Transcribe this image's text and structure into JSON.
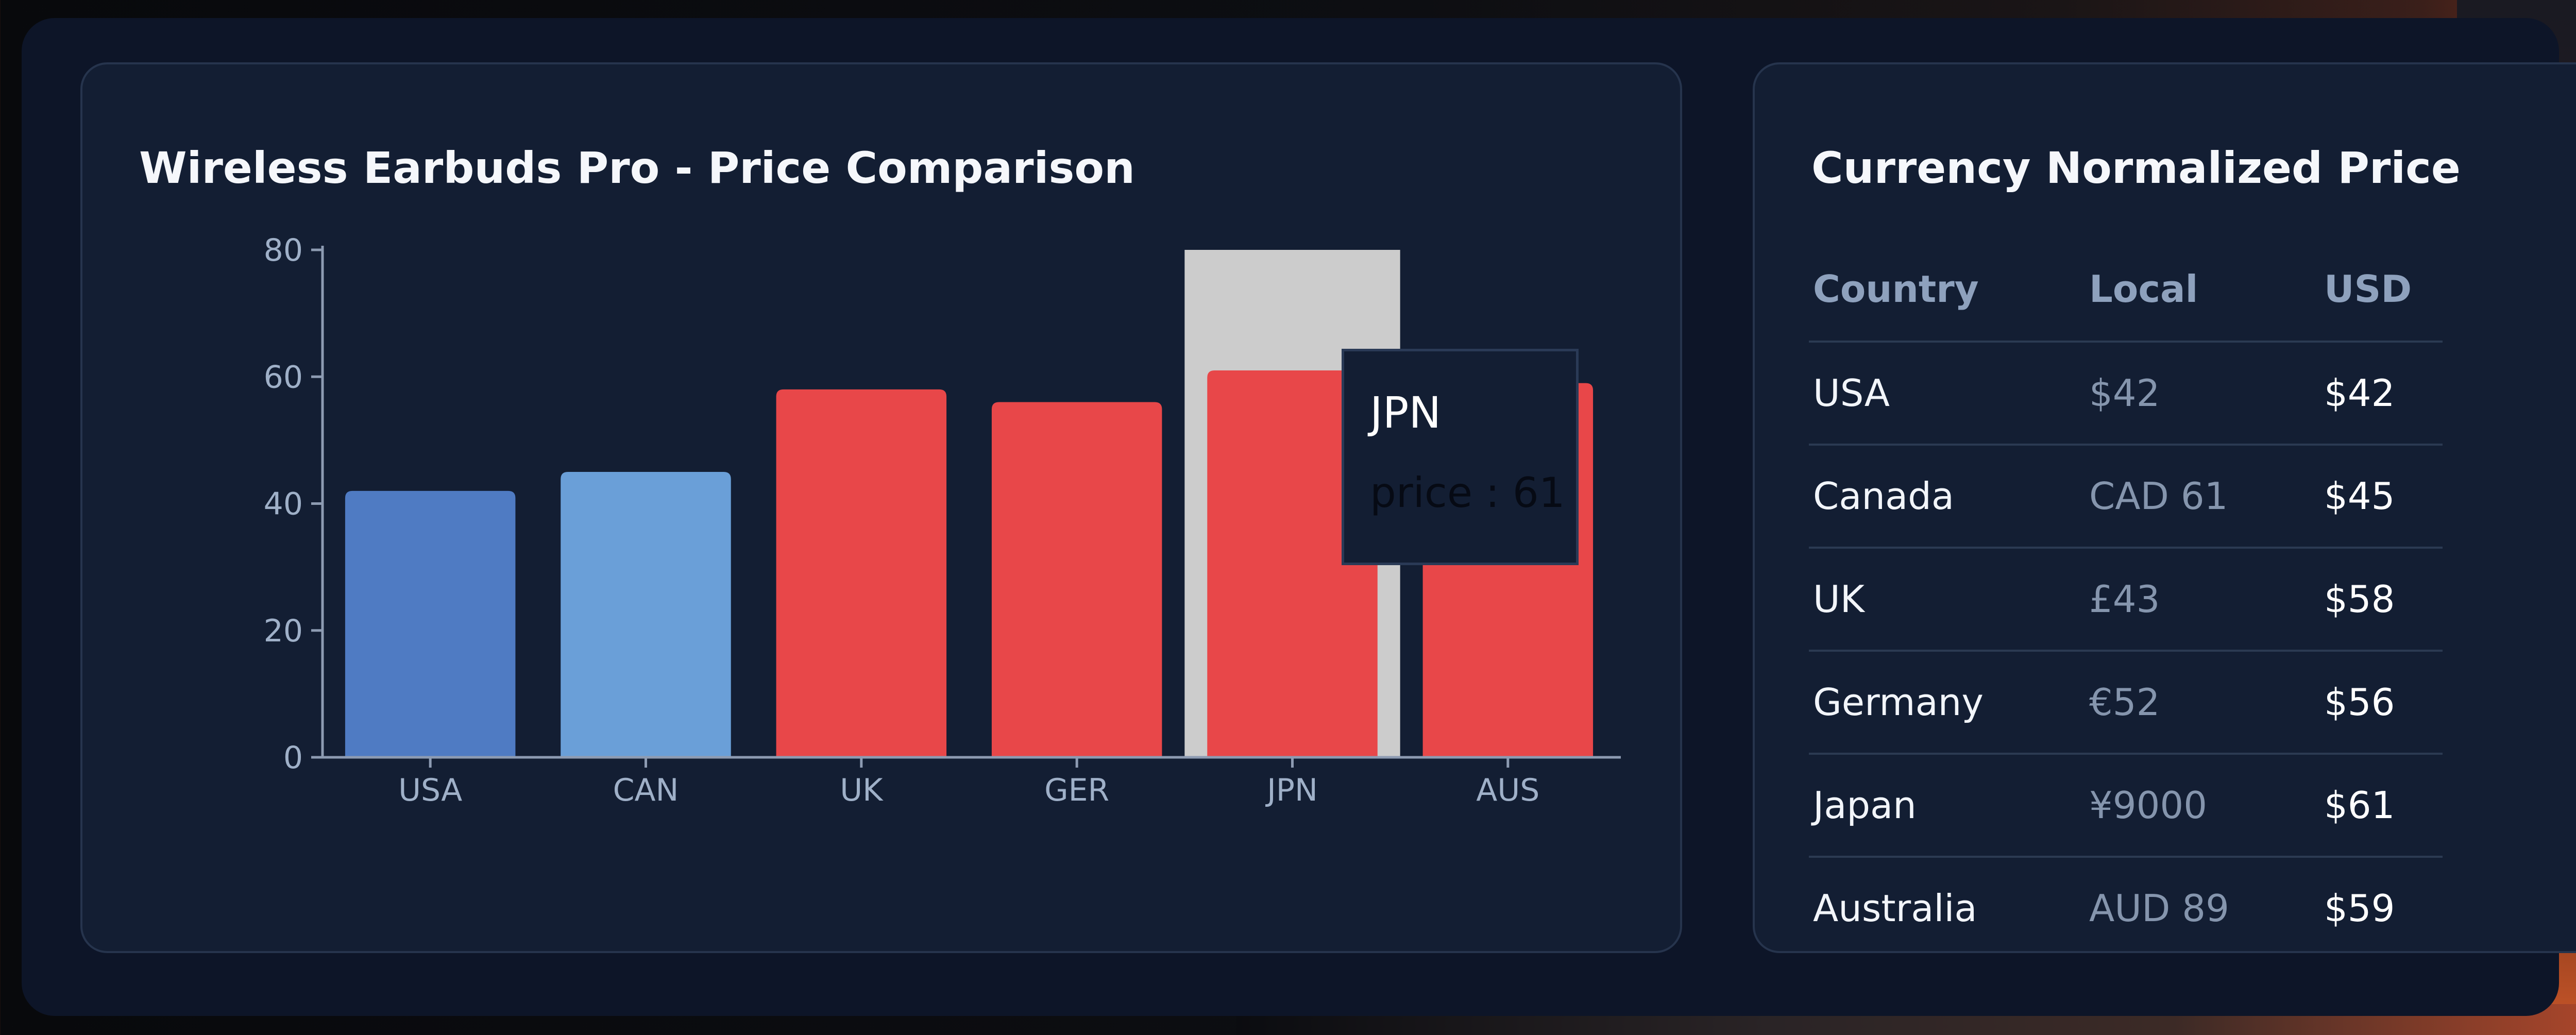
{
  "chart_panel": {
    "title": "Wireless Earbuds Pro - Price Comparison"
  },
  "chart_data": {
    "type": "bar",
    "categories": [
      "USA",
      "CAN",
      "UK",
      "GER",
      "JPN",
      "AUS"
    ],
    "values": [
      42,
      45,
      58,
      56,
      61,
      59
    ],
    "bar_colors": [
      "#4f7bc3",
      "#6a9fd8",
      "#e84749",
      "#e84749",
      "#e84749",
      "#e84749"
    ],
    "ylim": [
      0,
      80
    ],
    "yticks": [
      0,
      20,
      40,
      60,
      80
    ],
    "xlabel": "",
    "ylabel": "",
    "grid": false,
    "highlighted_category": "JPN",
    "tooltip": {
      "title": "JPN",
      "series_key": "price",
      "separator": " : ",
      "value": 61,
      "text": "price : 61"
    }
  },
  "table_panel": {
    "title": "Currency Normalized Price",
    "columns": [
      "Country",
      "Local",
      "USD"
    ],
    "rows": [
      {
        "country": "USA",
        "local": "$42",
        "usd": "$42"
      },
      {
        "country": "Canada",
        "local": "CAD 61",
        "usd": "$45"
      },
      {
        "country": "UK",
        "local": "£43",
        "usd": "$58"
      },
      {
        "country": "Germany",
        "local": "€52",
        "usd": "$56"
      },
      {
        "country": "Japan",
        "local": "¥9000",
        "usd": "$61"
      },
      {
        "country": "Australia",
        "local": "AUD 89",
        "usd": "$59"
      }
    ]
  },
  "colors": {
    "frame_bg": "#0d1528",
    "panel_bg": "#131e33",
    "usa_bar": "#4f7bc3",
    "can_bar": "#6a9fd8",
    "red_bar": "#e84749",
    "highlight_cursor": "#cccccc"
  }
}
